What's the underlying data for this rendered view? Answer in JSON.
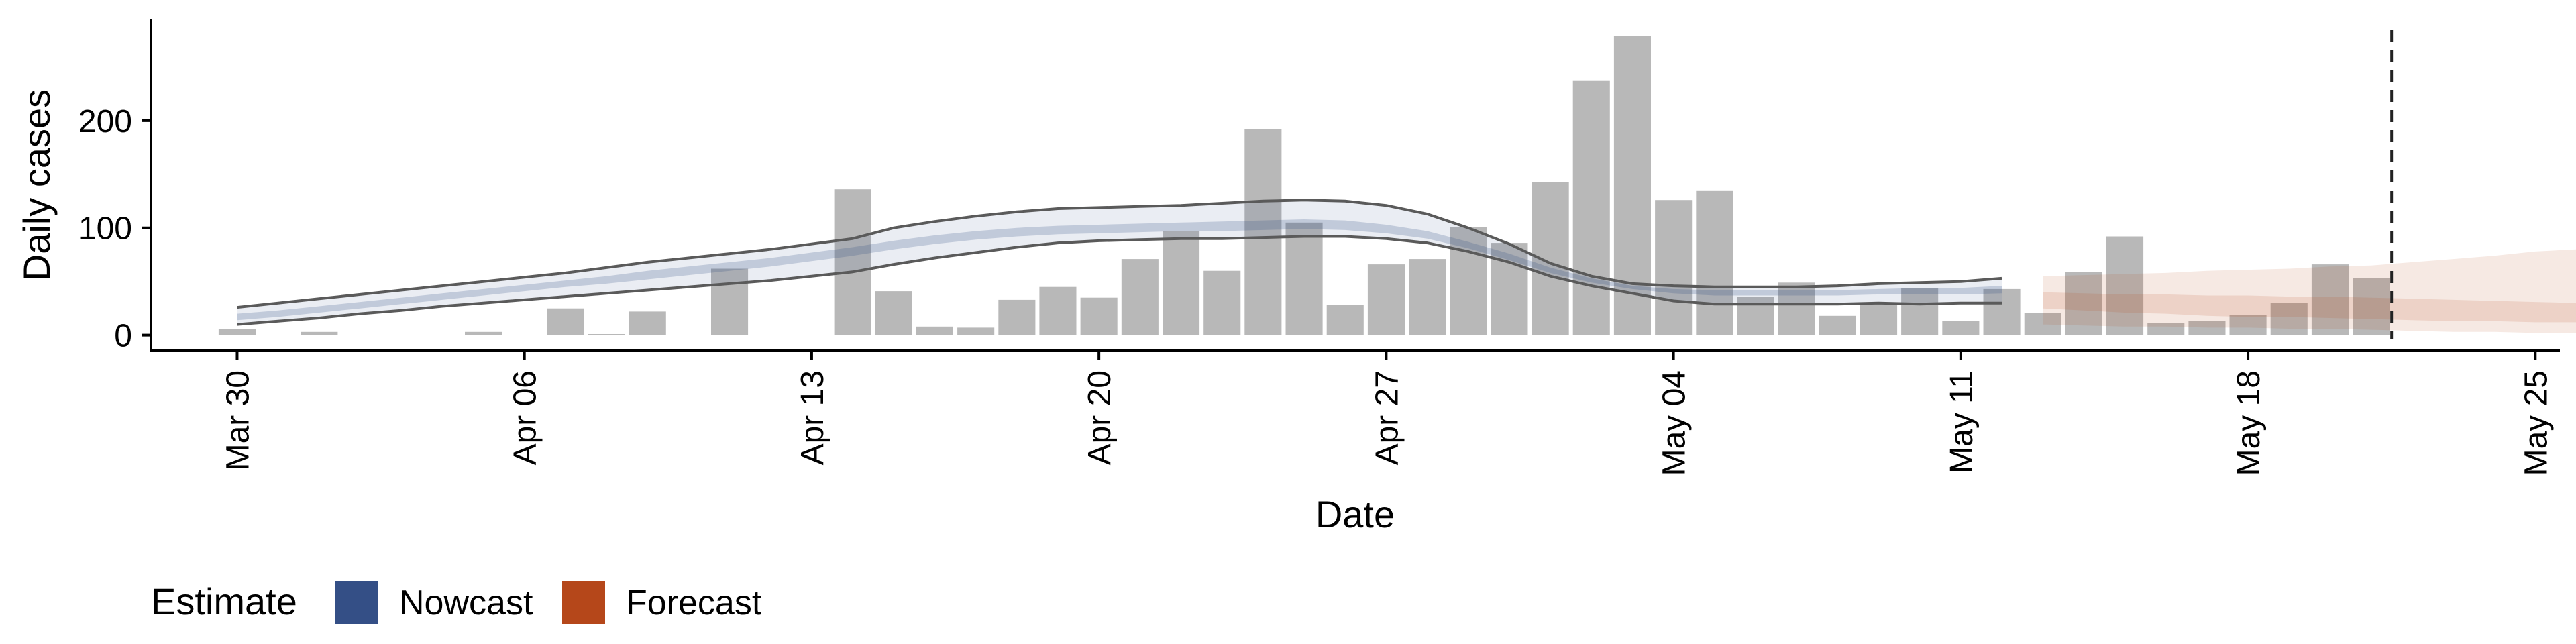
{
  "chart_data": {
    "type": "bar",
    "xlabel": "Date",
    "ylabel": "Daily cases",
    "yticks": [
      0,
      100,
      200
    ],
    "ylim": [
      -14,
      295
    ],
    "x_start_date": "2020-03-29",
    "xlim_days": [
      -1.1,
      57.6
    ],
    "xticks": [
      {
        "day": 1,
        "label": "Mar 30"
      },
      {
        "day": 8,
        "label": "Apr 06"
      },
      {
        "day": 15,
        "label": "Apr 13"
      },
      {
        "day": 22,
        "label": "Apr 20"
      },
      {
        "day": 29,
        "label": "Apr 27"
      },
      {
        "day": 36,
        "label": "May 04"
      },
      {
        "day": 43,
        "label": "May 11"
      },
      {
        "day": 50,
        "label": "May 18"
      },
      {
        "day": 57,
        "label": "May 25"
      }
    ],
    "vline_day": 53.5,
    "bars": {
      "color": "#b8b8b8",
      "days": [
        1,
        2,
        3,
        4,
        5,
        6,
        7,
        8,
        9,
        10,
        11,
        12,
        13,
        14,
        15,
        16,
        17,
        18,
        19,
        20,
        21,
        22,
        23,
        24,
        25,
        26,
        27,
        28,
        29,
        30,
        31,
        32,
        33,
        34,
        35,
        36,
        37,
        38,
        39,
        40,
        41,
        42,
        43,
        44,
        45,
        46,
        47,
        48,
        49,
        50,
        51,
        52,
        53,
        54
      ],
      "values": [
        6,
        0,
        3,
        0,
        0,
        0,
        3,
        0,
        25,
        1,
        22,
        0,
        62,
        0,
        0,
        136,
        41,
        8,
        7,
        33,
        45,
        35,
        71,
        97,
        60,
        192,
        105,
        28,
        66,
        71,
        101,
        86,
        143,
        237,
        279,
        126,
        135,
        36,
        49,
        18,
        30,
        44,
        13,
        43,
        21,
        59,
        92,
        11,
        13,
        19,
        30,
        66,
        53,
        0
      ]
    },
    "nowcast": {
      "name": "Nowcast",
      "color": "#344f86",
      "days": [
        1,
        2,
        3,
        4,
        5,
        6,
        7,
        8,
        9,
        10,
        11,
        12,
        13,
        14,
        15,
        16,
        17,
        18,
        19,
        20,
        21,
        22,
        23,
        24,
        25,
        26,
        27,
        28,
        29,
        30,
        31,
        32,
        33,
        34,
        35,
        36,
        37,
        38,
        39,
        40,
        41,
        42,
        43,
        44
      ],
      "outer_lower": [
        10,
        13,
        16,
        20,
        23,
        27,
        30,
        33,
        36,
        39,
        42,
        45,
        48,
        51,
        55,
        59,
        66,
        72,
        77,
        82,
        86,
        88,
        89,
        90,
        90,
        91,
        92,
        92,
        90,
        86,
        78,
        68,
        55,
        46,
        39,
        32,
        29,
        29,
        29,
        29,
        30,
        29,
        30,
        30
      ],
      "outer_upper": [
        26,
        30,
        34,
        38,
        42,
        46,
        50,
        54,
        58,
        63,
        68,
        72,
        76,
        80,
        85,
        90,
        100,
        106,
        111,
        115,
        118,
        119,
        120,
        121,
        123,
        125,
        126,
        125,
        121,
        113,
        100,
        85,
        67,
        55,
        48,
        46,
        45,
        45,
        45,
        46,
        48,
        49,
        50,
        53
      ],
      "mid_lower": [
        14,
        17,
        21,
        25,
        29,
        33,
        37,
        41,
        45,
        48,
        52,
        56,
        60,
        64,
        69,
        74,
        80,
        85,
        89,
        92,
        94,
        95,
        96,
        97,
        97,
        98,
        99,
        98,
        95,
        90,
        81,
        70,
        58,
        49,
        43,
        39,
        37,
        37,
        37,
        37,
        38,
        38,
        38,
        39
      ],
      "mid_upper": [
        20,
        23,
        27,
        31,
        35,
        39,
        43,
        47,
        51,
        55,
        60,
        64,
        68,
        72,
        77,
        82,
        88,
        93,
        97,
        100,
        102,
        103,
        104,
        105,
        106,
        107,
        108,
        107,
        103,
        97,
        87,
        76,
        63,
        53,
        46,
        43,
        42,
        42,
        42,
        42,
        43,
        44,
        44,
        46
      ]
    },
    "forecast": {
      "name": "Forecast",
      "color": "#b5471a",
      "days": [
        45,
        46,
        47,
        48,
        49,
        50,
        51,
        52,
        53,
        54,
        55,
        56,
        57,
        58
      ],
      "outer_lower": [
        10,
        9,
        8,
        8,
        7,
        7,
        6,
        6,
        5,
        4,
        3,
        3,
        2,
        2
      ],
      "outer_upper": [
        55,
        56,
        57,
        58,
        60,
        61,
        62,
        64,
        65,
        68,
        71,
        74,
        78,
        80
      ],
      "mid_lower": [
        25,
        23,
        21,
        20,
        18,
        17,
        17,
        16,
        15,
        14,
        13,
        13,
        12,
        12
      ],
      "mid_upper": [
        40,
        39,
        38,
        38,
        37,
        37,
        36,
        36,
        35,
        34,
        33,
        32,
        31,
        30
      ]
    },
    "legend": {
      "position": "bottom-left",
      "title": "Estimate",
      "items": [
        "Nowcast",
        "Forecast"
      ]
    }
  }
}
